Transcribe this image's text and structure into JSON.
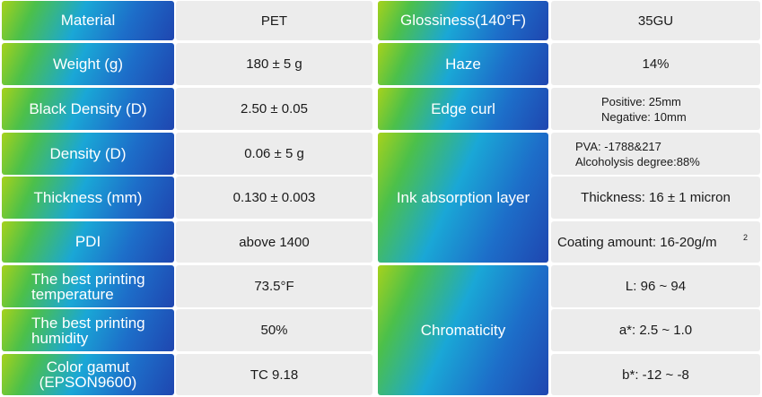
{
  "left_table": {
    "rows": [
      {
        "label": "Material",
        "value": "PET"
      },
      {
        "label": "Weight (g)",
        "value": "180 ± 5 g"
      },
      {
        "label": "Black Density (D)",
        "value": "2.50 ± 0.05"
      },
      {
        "label": "Density (D)",
        "value": "0.06 ± 5 g"
      },
      {
        "label": "Thickness (mm)",
        "value": "0.130 ± 0.003"
      },
      {
        "label": "PDI",
        "value": "above 1400"
      },
      {
        "label_line1": "The best printing",
        "label_line2": "temperature",
        "value": "73.5°F"
      },
      {
        "label_line1": "The best printing",
        "label_line2": "humidity",
        "value": "50%"
      },
      {
        "label_line1": "Color gamut",
        "label_line2": "(EPSON9600)",
        "value": "TC 9.18"
      }
    ]
  },
  "right_table": {
    "glossiness": {
      "label": "Glossiness(140°F)",
      "value": "35GU"
    },
    "haze": {
      "label": "Haze",
      "value": "14%"
    },
    "edge_curl": {
      "label": "Edge curl",
      "value_line1": "Positive: 25mm",
      "value_line2": "Negative: 10mm"
    },
    "ink_absorption": {
      "label": "Ink absorption layer",
      "pva_line1": "PVA: -1788&217",
      "pva_line2": "Alcoholysis degree:88%",
      "thickness": "Thickness: 16 ± 1 micron",
      "coating": "Coating amount: 16-20g/m",
      "coating_sup": "2"
    },
    "chromaticity": {
      "label": "Chromaticity",
      "L": "L:  96 ~ 94",
      "a": "a*:  2.5 ~ 1.0",
      "b": "b*:  -12 ~ -8"
    }
  }
}
